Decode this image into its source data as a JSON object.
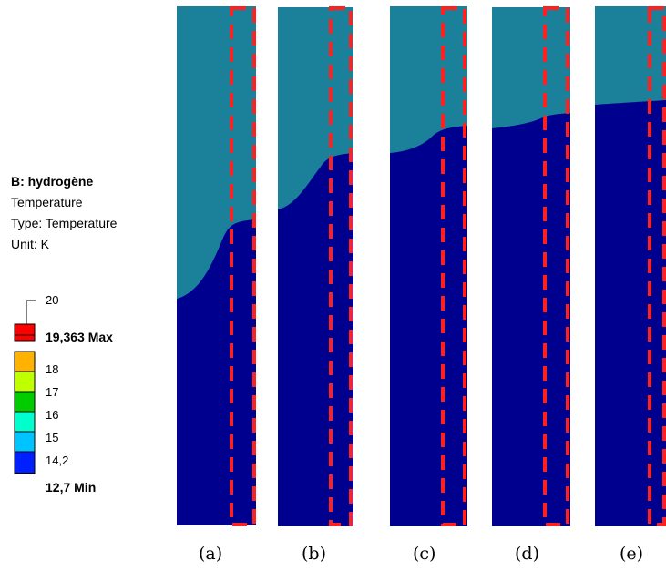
{
  "legend": {
    "title": "B: hydrogène",
    "lines": [
      "Temperature",
      "Type: Temperature",
      "Unit: K"
    ]
  },
  "scale": {
    "top_label": "20",
    "max_label": "19,363 Max",
    "labels": [
      "18",
      "17",
      "16",
      "15",
      "14,2"
    ],
    "min_label": "12,7 Min",
    "colors": [
      "#ff0000",
      "#ffb300",
      "#bfff00",
      "#00cc00",
      "#00ffcc",
      "#00c4ff",
      "#0020ff"
    ]
  },
  "panels": [
    {
      "caption": "(a)"
    },
    {
      "caption": "(b)"
    },
    {
      "caption": "(c)"
    },
    {
      "caption": "(d)"
    },
    {
      "caption": "(e)"
    }
  ],
  "colors": {
    "hot_region": "#1b809a",
    "cold_region": "#00008f",
    "highlight_box": "#ff2020"
  }
}
